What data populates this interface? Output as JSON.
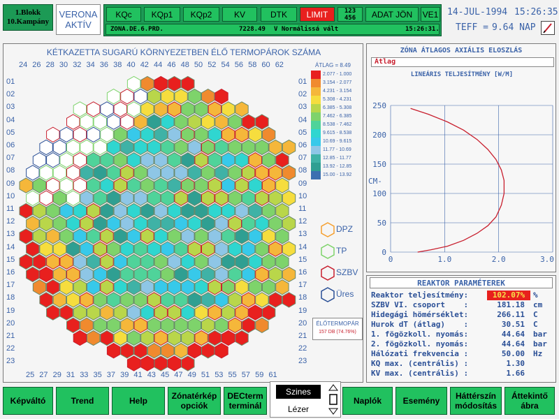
{
  "unit": {
    "line1": "1.Blokk",
    "line2": "10.Kampány"
  },
  "mode": {
    "line1": "VERONA",
    "line2": "AKTÍV"
  },
  "top_buttons": [
    "KQc",
    "KQp1",
    "KQp2",
    "KV",
    "DTK",
    "LIMIT",
    "ADAT JÖN",
    "VE1"
  ],
  "top_grid": {
    "row1": "123",
    "row2": "456"
  },
  "status": {
    "code": "ZONA.DE.6.PRD.",
    "value": "7228.49",
    "message": "V Normálissá vált",
    "time": "15:26:31."
  },
  "date": "14-JUL-1994",
  "clock": "15:26:35",
  "teff": {
    "label": "TEFF =",
    "value": "9.64 NAP"
  },
  "map": {
    "title": "KÉTKAZETTA SUGARÚ KÖRNYEZETBEN ÉLŐ TERMOPÁROK SZÁMA",
    "col_ticks_top": [
      "24",
      "26",
      "28",
      "30",
      "32",
      "34",
      "36",
      "38",
      "40",
      "42",
      "44",
      "46",
      "48",
      "50",
      "52",
      "54",
      "56",
      "58",
      "60",
      "62"
    ],
    "col_ticks_bottom": [
      "25",
      "27",
      "29",
      "31",
      "33",
      "35",
      "37",
      "39",
      "41",
      "43",
      "45",
      "47",
      "49",
      "51",
      "53",
      "55",
      "57",
      "59",
      "61"
    ],
    "row_ticks": [
      "01",
      "02",
      "03",
      "04",
      "05",
      "06",
      "07",
      "08",
      "09",
      "10",
      "11",
      "12",
      "13",
      "14",
      "15",
      "16",
      "17",
      "18",
      "19",
      "20",
      "21",
      "22",
      "23"
    ]
  },
  "legend": {
    "atlag": "ÁTLAG = 8.49",
    "ranges": [
      "2.077 - 1.000",
      "3.154 - 2.077",
      "4.231 - 3.154",
      "5.308 - 4.231",
      "6.385 - 5.308",
      "7.462 - 6.385",
      "8.538 - 7.462",
      "9.615 - 8.538",
      "10.69 - 9.615",
      "11.77 - 10.69",
      "12.85 - 11.77",
      "13.92 - 12.85",
      "15.00 - 13.92"
    ],
    "colors": [
      "#e8201e",
      "#f08a2e",
      "#f5b73a",
      "#f6dd3e",
      "#b9d64a",
      "#7ed36b",
      "#4fd39a",
      "#2fd6d0",
      "#37c9ea",
      "#8ec6e6",
      "#3fb2a6",
      "#2f9f92",
      "#3c70b0"
    ],
    "symbols": [
      "DPZ",
      "TP",
      "SZBV",
      "Üres"
    ],
    "symbol_colors": [
      "#f5a030",
      "#7ed36b",
      "#c81f2e",
      "#2a4f96"
    ]
  },
  "elotermopar": {
    "label": "ÉLŐTERMOPÁR",
    "value": "157 DB (74.76%)"
  },
  "zona": {
    "title": "ZÓNA ÁTLAGOS AXIÁLIS ELOSZLÁS",
    "atlag_tab": "Átlag",
    "chart_title": "LINEÁRIS TELJESÍTMÉNY [W/M]",
    "y_unit": "CM-",
    "chart_data": {
      "type": "line",
      "xlim": [
        0,
        3.0
      ],
      "ylim": [
        0,
        250
      ],
      "x_ticks": [
        "0",
        "1.0",
        "2.0",
        "3.0"
      ],
      "y_ticks": [
        "0",
        "50",
        "100",
        "150",
        "200",
        "250"
      ],
      "x": [
        0.37,
        0.7,
        1.05,
        1.35,
        1.6,
        1.8,
        1.95,
        2.05,
        2.1,
        2.1,
        2.05,
        1.95,
        1.8,
        1.6,
        1.35,
        1.05,
        0.75,
        0.5
      ],
      "y": [
        245,
        235,
        222,
        208,
        192,
        175,
        158,
        140,
        122,
        100,
        80,
        60,
        45,
        32,
        20,
        10,
        4,
        0
      ],
      "color": "#c81f2e"
    }
  },
  "params": {
    "title": "REAKTOR PARAMÉTEREK",
    "rows": [
      {
        "label": "Reaktor teljesítmény:",
        "value": "102.07%",
        "unit": "%"
      },
      {
        "label": "SZBV VI. csoport    :",
        "value": "181.18",
        "unit": "cm"
      },
      {
        "label": "Hidegági hömérséklet:",
        "value": "266.11",
        "unit": "C"
      },
      {
        "label": "Hurok dT (átlag)    :",
        "value": "30.51",
        "unit": "C"
      },
      {
        "label": "1. fögözkoll. nyomás:",
        "value": "44.64",
        "unit": "bar"
      },
      {
        "label": "2. fögözkoll. nyomás:",
        "value": "44.64",
        "unit": "bar"
      },
      {
        "label": "Hálózati frekvencia :",
        "value": "50.00",
        "unit": "Hz"
      },
      {
        "label": "KQ max. (centrális) :",
        "value": "1.30",
        "unit": ""
      },
      {
        "label": "KV max. (centrális) :",
        "value": "1.66",
        "unit": ""
      }
    ]
  },
  "bottom_buttons": [
    {
      "l1": "Képváltó",
      "l2": ""
    },
    {
      "l1": "Trend",
      "l2": ""
    },
    {
      "l1": "Help",
      "l2": ""
    },
    {
      "l1": "Zónatérkép",
      "l2": "opciók"
    },
    {
      "l1": "DECterm",
      "l2": "terminál"
    },
    {
      "l1": "Naplók",
      "l2": ""
    },
    {
      "l1": "Esemény",
      "l2": ""
    },
    {
      "l1": "Háttérszín",
      "l2": "módosítás"
    },
    {
      "l1": "Áttekintő",
      "l2": "ábra"
    }
  ],
  "display_mode": {
    "selected": "Szines",
    "other": "Lézer"
  }
}
